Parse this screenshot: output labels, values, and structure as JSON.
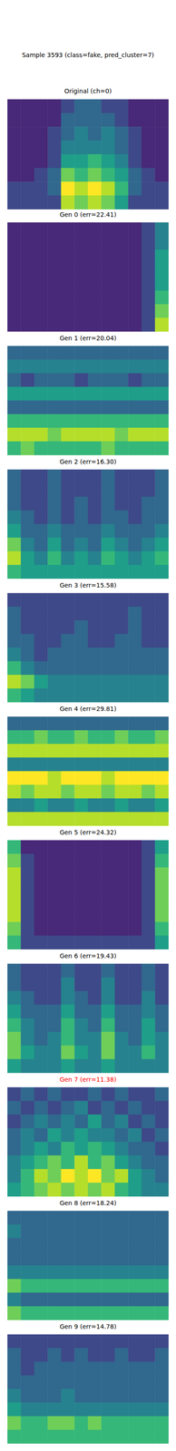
{
  "title": "Sample 3593 (class=fake, pred_cluster=7)",
  "chart_data": [
    {
      "type": "heatmap",
      "title": "Original (ch=0)",
      "tick_labels": false,
      "color_range": [
        0,
        9
      ],
      "cells": [
        [
          1,
          1,
          1,
          1,
          2,
          3,
          3,
          2,
          2,
          1,
          1,
          1
        ],
        [
          1,
          1,
          1,
          1,
          3,
          3,
          3,
          3,
          2,
          1,
          1,
          1
        ],
        [
          1,
          1,
          1,
          2,
          3,
          4,
          3,
          4,
          3,
          2,
          1,
          1
        ],
        [
          1,
          1,
          1,
          2,
          4,
          4,
          4,
          4,
          3,
          2,
          1,
          1
        ],
        [
          1,
          1,
          1,
          2,
          5,
          5,
          6,
          5,
          4,
          2,
          1,
          1
        ],
        [
          1,
          1,
          2,
          3,
          7,
          6,
          7,
          6,
          5,
          3,
          2,
          1
        ],
        [
          2,
          2,
          2,
          3,
          9,
          8,
          9,
          8,
          6,
          3,
          2,
          2
        ],
        [
          2,
          2,
          2,
          2,
          8,
          7,
          8,
          7,
          5,
          2,
          2,
          2
        ]
      ]
    },
    {
      "type": "heatmap",
      "title": "Gen 0 (err=22.41)",
      "tick_labels": false,
      "color_range": [
        0,
        9
      ],
      "cells": [
        [
          1,
          1,
          1,
          1,
          1,
          1,
          1,
          1,
          1,
          1,
          2,
          4
        ],
        [
          1,
          1,
          1,
          1,
          1,
          1,
          1,
          1,
          1,
          1,
          2,
          4
        ],
        [
          1,
          1,
          1,
          1,
          1,
          1,
          1,
          1,
          1,
          1,
          2,
          5
        ],
        [
          1,
          1,
          1,
          1,
          1,
          1,
          1,
          1,
          1,
          1,
          2,
          5
        ],
        [
          1,
          1,
          1,
          1,
          1,
          1,
          1,
          1,
          1,
          1,
          2,
          5
        ],
        [
          1,
          1,
          1,
          1,
          1,
          1,
          1,
          1,
          1,
          1,
          2,
          6
        ],
        [
          1,
          1,
          1,
          1,
          1,
          1,
          1,
          1,
          1,
          1,
          2,
          7
        ],
        [
          1,
          1,
          1,
          1,
          1,
          1,
          1,
          1,
          1,
          1,
          2,
          8
        ]
      ]
    },
    {
      "type": "heatmap",
      "title": "Gen 1 (err=20.04)",
      "tick_labels": false,
      "color_range": [
        0,
        9
      ],
      "cells": [
        [
          3,
          3,
          3,
          3,
          3,
          3,
          3,
          3,
          3,
          3,
          3,
          3
        ],
        [
          4,
          4,
          4,
          4,
          4,
          4,
          4,
          4,
          4,
          4,
          4,
          4
        ],
        [
          3,
          2,
          3,
          3,
          3,
          2,
          3,
          3,
          3,
          2,
          3,
          3
        ],
        [
          5,
          5,
          5,
          5,
          5,
          5,
          5,
          5,
          5,
          5,
          5,
          5
        ],
        [
          3,
          3,
          3,
          3,
          3,
          3,
          3,
          3,
          3,
          3,
          3,
          3
        ],
        [
          6,
          6,
          6,
          6,
          6,
          6,
          6,
          6,
          6,
          6,
          6,
          6
        ],
        [
          8,
          8,
          8,
          7,
          8,
          8,
          8,
          8,
          7,
          8,
          8,
          8
        ],
        [
          6,
          7,
          6,
          6,
          6,
          6,
          6,
          7,
          6,
          6,
          6,
          6
        ]
      ]
    },
    {
      "type": "heatmap",
      "title": "Gen 2 (err=16.30)",
      "tick_labels": false,
      "color_range": [
        0,
        9
      ],
      "cells": [
        [
          3,
          2,
          2,
          3,
          2,
          2,
          2,
          3,
          2,
          2,
          2,
          3
        ],
        [
          3,
          2,
          2,
          3,
          2,
          2,
          2,
          3,
          2,
          2,
          2,
          3
        ],
        [
          3,
          2,
          2,
          3,
          2,
          3,
          2,
          3,
          2,
          2,
          3,
          3
        ],
        [
          4,
          3,
          2,
          3,
          2,
          3,
          2,
          3,
          3,
          2,
          3,
          3
        ],
        [
          5,
          3,
          3,
          4,
          3,
          3,
          3,
          4,
          3,
          3,
          3,
          4
        ],
        [
          7,
          4,
          3,
          5,
          3,
          4,
          3,
          5,
          4,
          3,
          4,
          5
        ],
        [
          8,
          5,
          4,
          6,
          4,
          5,
          4,
          6,
          5,
          4,
          5,
          6
        ],
        [
          6,
          5,
          5,
          5,
          5,
          5,
          5,
          5,
          5,
          5,
          5,
          5
        ]
      ]
    },
    {
      "type": "heatmap",
      "title": "Gen 3 (err=15.58)",
      "tick_labels": false,
      "color_range": [
        0,
        9
      ],
      "cells": [
        [
          2,
          2,
          2,
          2,
          2,
          2,
          2,
          2,
          2,
          2,
          2,
          2
        ],
        [
          3,
          2,
          2,
          2,
          2,
          2,
          2,
          2,
          2,
          3,
          2,
          2
        ],
        [
          3,
          2,
          2,
          2,
          2,
          3,
          2,
          2,
          2,
          3,
          2,
          2
        ],
        [
          3,
          3,
          2,
          2,
          3,
          3,
          2,
          2,
          3,
          3,
          2,
          2
        ],
        [
          4,
          3,
          2,
          3,
          3,
          3,
          3,
          3,
          3,
          3,
          3,
          3
        ],
        [
          6,
          4,
          3,
          3,
          3,
          3,
          3,
          3,
          3,
          3,
          3,
          3
        ],
        [
          8,
          7,
          5,
          4,
          4,
          4,
          4,
          4,
          4,
          4,
          4,
          4
        ],
        [
          6,
          5,
          4,
          4,
          4,
          4,
          4,
          4,
          4,
          4,
          4,
          4
        ]
      ]
    },
    {
      "type": "heatmap",
      "title": "Gen 4 (err=29.81)",
      "tick_labels": false,
      "color_range": [
        0,
        9
      ],
      "cells": [
        [
          3,
          3,
          3,
          3,
          3,
          3,
          3,
          3,
          3,
          3,
          3,
          3
        ],
        [
          6,
          6,
          7,
          6,
          6,
          7,
          6,
          6,
          7,
          6,
          6,
          7
        ],
        [
          8,
          8,
          8,
          8,
          8,
          8,
          8,
          8,
          8,
          8,
          8,
          8
        ],
        [
          4,
          4,
          4,
          4,
          4,
          4,
          4,
          4,
          4,
          4,
          4,
          4
        ],
        [
          9,
          9,
          9,
          8,
          9,
          9,
          9,
          8,
          9,
          9,
          9,
          9
        ],
        [
          8,
          7,
          8,
          8,
          7,
          8,
          8,
          7,
          8,
          8,
          7,
          8
        ],
        [
          4,
          4,
          5,
          4,
          4,
          5,
          4,
          4,
          5,
          4,
          4,
          5
        ],
        [
          8,
          8,
          8,
          8,
          8,
          8,
          8,
          8,
          8,
          8,
          8,
          8
        ]
      ]
    },
    {
      "type": "heatmap",
      "title": "Gen 5 (err=24.32)",
      "tick_labels": false,
      "color_range": [
        0,
        9
      ],
      "cells": [
        [
          6,
          1,
          1,
          1,
          1,
          1,
          1,
          1,
          1,
          1,
          2,
          5
        ],
        [
          7,
          2,
          1,
          1,
          1,
          1,
          1,
          1,
          1,
          1,
          2,
          6
        ],
        [
          8,
          2,
          1,
          1,
          1,
          1,
          1,
          1,
          1,
          1,
          2,
          7
        ],
        [
          8,
          2,
          1,
          1,
          1,
          1,
          1,
          1,
          1,
          1,
          2,
          7
        ],
        [
          8,
          2,
          1,
          1,
          1,
          1,
          1,
          1,
          1,
          1,
          2,
          7
        ],
        [
          8,
          2,
          1,
          1,
          1,
          1,
          1,
          1,
          1,
          1,
          2,
          7
        ],
        [
          7,
          2,
          1,
          1,
          1,
          1,
          1,
          1,
          1,
          1,
          2,
          6
        ],
        [
          6,
          2,
          2,
          2,
          2,
          2,
          2,
          2,
          2,
          2,
          2,
          5
        ]
      ]
    },
    {
      "type": "heatmap",
      "title": "Gen 6 (err=19.43)",
      "tick_labels": false,
      "color_range": [
        0,
        9
      ],
      "cells": [
        [
          3,
          2,
          2,
          2,
          3,
          2,
          2,
          3,
          2,
          2,
          3,
          2
        ],
        [
          3,
          2,
          2,
          2,
          4,
          2,
          2,
          4,
          2,
          2,
          3,
          2
        ],
        [
          4,
          3,
          2,
          2,
          4,
          3,
          2,
          4,
          2,
          2,
          4,
          2
        ],
        [
          5,
          3,
          3,
          3,
          5,
          3,
          3,
          5,
          3,
          3,
          4,
          3
        ],
        [
          6,
          4,
          3,
          3,
          6,
          4,
          3,
          6,
          3,
          3,
          5,
          3
        ],
        [
          7,
          4,
          3,
          4,
          6,
          4,
          4,
          7,
          4,
          3,
          5,
          4
        ],
        [
          7,
          5,
          4,
          4,
          7,
          5,
          4,
          7,
          4,
          4,
          6,
          4
        ],
        [
          5,
          4,
          4,
          4,
          5,
          4,
          4,
          5,
          4,
          4,
          4,
          4
        ]
      ]
    },
    {
      "type": "heatmap",
      "title": "Gen 7 (err=11.38)",
      "color": "#ff0000",
      "tick_labels": false,
      "color_range": [
        0,
        9
      ],
      "cells": [
        [
          2,
          3,
          2,
          3,
          2,
          2,
          3,
          2,
          3,
          2,
          2,
          3
        ],
        [
          3,
          2,
          3,
          2,
          3,
          4,
          2,
          3,
          2,
          3,
          2,
          2
        ],
        [
          2,
          3,
          4,
          3,
          4,
          3,
          5,
          3,
          4,
          2,
          3,
          2
        ],
        [
          3,
          4,
          3,
          5,
          4,
          5,
          4,
          4,
          3,
          4,
          2,
          3
        ],
        [
          3,
          4,
          5,
          4,
          6,
          5,
          6,
          5,
          4,
          3,
          3,
          2
        ],
        [
          4,
          5,
          6,
          7,
          6,
          8,
          6,
          7,
          5,
          4,
          3,
          3
        ],
        [
          4,
          6,
          8,
          7,
          9,
          8,
          9,
          7,
          8,
          5,
          4,
          3
        ],
        [
          5,
          6,
          7,
          8,
          7,
          8,
          7,
          8,
          6,
          5,
          4,
          4
        ]
      ]
    },
    {
      "type": "heatmap",
      "title": "Gen 8 (err=18.24)",
      "tick_labels": false,
      "color_range": [
        0,
        9
      ],
      "cells": [
        [
          3,
          3,
          3,
          3,
          3,
          3,
          3,
          3,
          3,
          3,
          3,
          3
        ],
        [
          4,
          3,
          3,
          3,
          3,
          3,
          3,
          3,
          3,
          3,
          3,
          3
        ],
        [
          3,
          3,
          3,
          3,
          3,
          3,
          3,
          3,
          3,
          3,
          3,
          3
        ],
        [
          3,
          3,
          3,
          3,
          3,
          3,
          3,
          3,
          3,
          3,
          3,
          3
        ],
        [
          4,
          4,
          4,
          4,
          4,
          4,
          4,
          4,
          4,
          4,
          4,
          4
        ],
        [
          7,
          6,
          6,
          6,
          6,
          6,
          6,
          6,
          6,
          6,
          6,
          6
        ],
        [
          4,
          3,
          3,
          3,
          3,
          3,
          3,
          3,
          3,
          3,
          3,
          3
        ],
        [
          7,
          6,
          6,
          6,
          6,
          6,
          6,
          6,
          6,
          6,
          6,
          6
        ]
      ]
    },
    {
      "type": "heatmap",
      "title": "Gen 9 (err=14.78)",
      "tick_labels": false,
      "color_range": [
        0,
        9
      ],
      "cells": [
        [
          2,
          2,
          2,
          2,
          2,
          2,
          2,
          2,
          2,
          2,
          2,
          2
        ],
        [
          3,
          2,
          2,
          3,
          2,
          3,
          2,
          2,
          3,
          2,
          2,
          3
        ],
        [
          3,
          2,
          3,
          3,
          3,
          3,
          3,
          3,
          3,
          3,
          3,
          3
        ],
        [
          3,
          3,
          3,
          3,
          3,
          3,
          3,
          3,
          3,
          3,
          3,
          3
        ],
        [
          4,
          3,
          3,
          3,
          4,
          3,
          3,
          3,
          3,
          3,
          3,
          3
        ],
        [
          5,
          4,
          4,
          4,
          4,
          4,
          4,
          4,
          4,
          4,
          4,
          4
        ],
        [
          7,
          6,
          6,
          7,
          7,
          6,
          7,
          6,
          6,
          6,
          6,
          6
        ],
        [
          6,
          6,
          6,
          6,
          6,
          6,
          6,
          6,
          6,
          6,
          6,
          6
        ]
      ]
    }
  ]
}
